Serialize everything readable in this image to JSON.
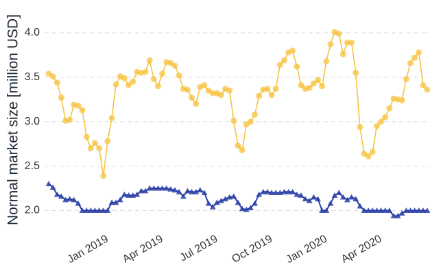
{
  "chart_data": {
    "type": "line",
    "ylabel": "Normal market size [million USD]",
    "categories": [
      null,
      null,
      null,
      null,
      null,
      null,
      null,
      null,
      null,
      null,
      null,
      null,
      null,
      null,
      "Jan 2019",
      null,
      null,
      null,
      null,
      null,
      null,
      null,
      null,
      null,
      null,
      null,
      null,
      "Apr 2019",
      null,
      null,
      null,
      null,
      null,
      null,
      null,
      null,
      null,
      null,
      null,
      null,
      "Jul 2019",
      null,
      null,
      null,
      null,
      null,
      null,
      null,
      null,
      null,
      null,
      null,
      null,
      "Oct 2019",
      null,
      null,
      null,
      null,
      null,
      null,
      null,
      null,
      null,
      null,
      null,
      null,
      "Jan 2020",
      null,
      null,
      null,
      null,
      null,
      null,
      null,
      null,
      null,
      null,
      null,
      null,
      "Apr 2020",
      null,
      null,
      null,
      null,
      null,
      null,
      null,
      null,
      null,
      null,
      null
    ],
    "series": [
      {
        "color": "#f7c342",
        "marker": "circle",
        "values": [
          3.54,
          3.51,
          3.44,
          3.27,
          3.01,
          3.02,
          3.19,
          3.18,
          3.13,
          2.83,
          2.7,
          2.76,
          2.7,
          2.39,
          2.78,
          3.04,
          3.42,
          3.51,
          3.49,
          3.41,
          3.45,
          3.56,
          3.55,
          3.56,
          3.69,
          3.48,
          3.4,
          3.54,
          3.67,
          3.66,
          3.63,
          3.52,
          3.37,
          3.36,
          3.27,
          3.2,
          3.39,
          3.41,
          3.35,
          3.32,
          3.32,
          3.3,
          3.37,
          3.35,
          3.01,
          2.73,
          2.68,
          2.97,
          3.0,
          3.08,
          3.29,
          3.36,
          3.37,
          3.3,
          3.37,
          3.64,
          3.69,
          3.78,
          3.8,
          3.62,
          3.41,
          3.37,
          3.38,
          3.43,
          3.47,
          3.4,
          3.68,
          3.87,
          4.01,
          3.99,
          3.76,
          3.89,
          3.89,
          3.55,
          2.94,
          2.64,
          2.61,
          2.66,
          2.95,
          3.0,
          3.05,
          3.15,
          3.26,
          3.25,
          3.24,
          3.48,
          3.66,
          3.72,
          3.78,
          3.41,
          3.36
        ]
      },
      {
        "color": "#2b3fa6",
        "marker": "triangle",
        "values": [
          2.3,
          2.26,
          2.18,
          2.16,
          2.12,
          2.13,
          2.12,
          2.08,
          2.0,
          2.0,
          2.0,
          2.0,
          2.0,
          2.0,
          2.0,
          2.09,
          2.09,
          2.12,
          2.18,
          2.17,
          2.17,
          2.18,
          2.22,
          2.22,
          2.25,
          2.25,
          2.25,
          2.25,
          2.25,
          2.24,
          2.23,
          2.21,
          2.16,
          2.22,
          2.21,
          2.21,
          2.23,
          2.2,
          2.08,
          2.04,
          2.09,
          2.11,
          2.13,
          2.15,
          2.16,
          2.09,
          2.02,
          2.01,
          2.03,
          2.08,
          2.18,
          2.21,
          2.21,
          2.2,
          2.2,
          2.2,
          2.21,
          2.21,
          2.21,
          2.18,
          2.17,
          2.13,
          2.11,
          2.15,
          2.13,
          2.0,
          2.0,
          2.08,
          2.17,
          2.2,
          2.15,
          2.12,
          2.15,
          2.13,
          2.05,
          2.0,
          2.0,
          2.0,
          2.0,
          2.0,
          2.0,
          2.0,
          1.94,
          1.94,
          1.97,
          2.0,
          2.0,
          2.0,
          2.0,
          2.0,
          2.0
        ]
      }
    ],
    "ylim": [
      1.78,
      4.3
    ],
    "yticks": [
      {
        "value": 2,
        "label": "2.0"
      },
      {
        "value": 2.5,
        "label": "2.5"
      },
      {
        "value": 3,
        "label": "3.0"
      },
      {
        "value": 3.5,
        "label": "3.5"
      },
      {
        "value": 4,
        "label": "4.0"
      }
    ],
    "grid": true
  }
}
